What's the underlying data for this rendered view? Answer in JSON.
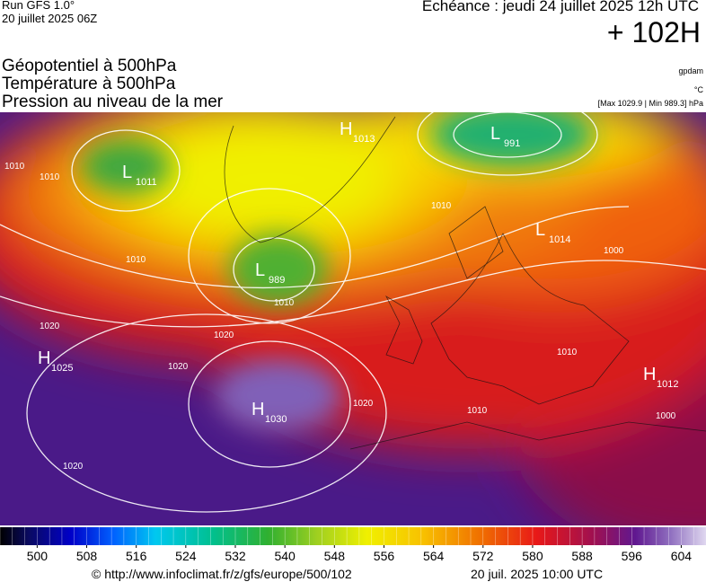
{
  "header": {
    "run": "Run GFS 1.0°",
    "run_date": "20 juillet 2025 06Z",
    "valid": "Echéance : jeudi 24 juillet 2025 12h UTC",
    "lead": "+ 102H"
  },
  "titles": [
    "Géopotentiel à 500hPa",
    "Température à 500hPa",
    "Pression au niveau de la mer"
  ],
  "units": {
    "geopotential": "gpdam",
    "temperature": "°C",
    "pressure": "[Max 1029.9 | Min 989.3] hPa"
  },
  "centers": [
    {
      "letter": "H",
      "value": 1013
    },
    {
      "letter": "L",
      "value": 991
    },
    {
      "letter": "L",
      "value": 1014
    },
    {
      "letter": "L",
      "value": 1011
    },
    {
      "letter": "L",
      "value": 989
    },
    {
      "letter": "H",
      "value": 1025
    },
    {
      "letter": "H",
      "value": 1030
    },
    {
      "letter": "H",
      "value": 1012
    }
  ],
  "isobar_labels": [
    1010,
    1010,
    1010,
    1010,
    1020,
    1020,
    1020,
    1020,
    1020,
    1010,
    1010,
    1000,
    1000,
    1010
  ],
  "colorbar": {
    "range": [
      494,
      608
    ],
    "ticks": [
      500,
      508,
      516,
      524,
      532,
      540,
      548,
      556,
      564,
      572,
      580,
      588,
      596,
      604
    ]
  },
  "footer": {
    "source": "© http://www.infoclimat.fr/z/gfs/europe/500/102",
    "generated": "20 juil. 2025 10:00 UTC"
  }
}
